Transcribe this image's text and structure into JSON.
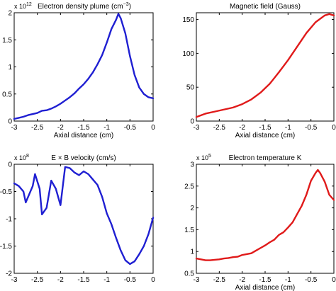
{
  "chart_data": [
    {
      "type": "line",
      "title": "Electron density plume (cm",
      "title_sup": "−3",
      "title_end": ")",
      "xlabel": "Axial distance (cm)",
      "ylabel": "",
      "xlim": [
        -3,
        0
      ],
      "ylim": [
        0,
        2
      ],
      "exponent_base": "x 10",
      "exponent": "12",
      "xticks": [
        "-3",
        "-2.5",
        "-2",
        "-1.5",
        "-1",
        "-0.5",
        "0"
      ],
      "yticks": [
        "0",
        "0.5",
        "1",
        "1.5",
        "2"
      ],
      "color": "#1f1fd2",
      "series": [
        {
          "x": [
            -3,
            -2.9,
            -2.8,
            -2.7,
            -2.6,
            -2.5,
            -2.4,
            -2.3,
            -2.2,
            -2.1,
            -2.0,
            -1.9,
            -1.8,
            -1.7,
            -1.6,
            -1.5,
            -1.4,
            -1.3,
            -1.2,
            -1.1,
            -1.0,
            -0.9,
            -0.8,
            -0.75,
            -0.7,
            -0.6,
            -0.5,
            -0.4,
            -0.3,
            -0.2,
            -0.1,
            0
          ],
          "y": [
            0.04,
            0.06,
            0.08,
            0.11,
            0.13,
            0.15,
            0.19,
            0.2,
            0.23,
            0.27,
            0.32,
            0.38,
            0.44,
            0.51,
            0.6,
            0.68,
            0.78,
            0.9,
            1.05,
            1.22,
            1.45,
            1.7,
            1.87,
            1.98,
            1.9,
            1.62,
            1.2,
            0.85,
            0.62,
            0.5,
            0.44,
            0.42
          ]
        }
      ]
    },
    {
      "type": "line",
      "title": "Magnetic field (Gauss)",
      "xlabel": "Axial distance (cm)",
      "ylabel": "",
      "xlim": [
        -3,
        0
      ],
      "ylim": [
        0,
        160
      ],
      "xticks": [
        "-3",
        "-2.5",
        "-2",
        "-1.5",
        "-1",
        "-0.5",
        "0"
      ],
      "yticks": [
        "0",
        "50",
        "100",
        "150"
      ],
      "color": "#e01a1a",
      "series": [
        {
          "x": [
            -3,
            -2.8,
            -2.6,
            -2.4,
            -2.2,
            -2.0,
            -1.8,
            -1.6,
            -1.4,
            -1.2,
            -1.0,
            -0.8,
            -0.6,
            -0.4,
            -0.2,
            -0.1,
            0
          ],
          "y": [
            6,
            11,
            14,
            17,
            20,
            25,
            32,
            42,
            55,
            72,
            90,
            110,
            130,
            146,
            156,
            158,
            156
          ]
        }
      ]
    },
    {
      "type": "line",
      "title": "E × B velocity (cm/s)",
      "xlabel": "",
      "ylabel": "",
      "xlim": [
        -3,
        0
      ],
      "ylim": [
        -2,
        0
      ],
      "exponent_base": "x 10",
      "exponent": "8",
      "xticks": [
        "-3",
        "-2.5",
        "-2",
        "-1.5",
        "-1",
        "-0.5",
        "0"
      ],
      "yticks": [
        "-2",
        "-1.5",
        "-1",
        "-0.5",
        "0"
      ],
      "color": "#1f1fd2",
      "series": [
        {
          "x": [
            -3,
            -2.9,
            -2.8,
            -2.75,
            -2.6,
            -2.55,
            -2.45,
            -2.4,
            -2.3,
            -2.2,
            -2.1,
            -2.0,
            -1.9,
            -1.8,
            -1.7,
            -1.6,
            -1.5,
            -1.4,
            -1.3,
            -1.2,
            -1.1,
            -1.0,
            -0.9,
            -0.8,
            -0.7,
            -0.6,
            -0.5,
            -0.4,
            -0.3,
            -0.2,
            -0.1,
            0
          ],
          "y": [
            -0.35,
            -0.4,
            -0.5,
            -0.7,
            -0.4,
            -0.18,
            -0.45,
            -0.92,
            -0.8,
            -0.3,
            -0.45,
            -0.75,
            -0.05,
            -0.07,
            -0.15,
            -0.2,
            -0.13,
            -0.18,
            -0.28,
            -0.38,
            -0.6,
            -0.9,
            -1.1,
            -1.35,
            -1.58,
            -1.76,
            -1.83,
            -1.78,
            -1.65,
            -1.5,
            -1.28,
            -0.98
          ]
        }
      ]
    },
    {
      "type": "line",
      "title": "Electron temperature K",
      "xlabel": "Axial distance (cm)",
      "ylabel": "",
      "xlim": [
        -3,
        0
      ],
      "ylim": [
        0.5,
        3
      ],
      "exponent_base": "x 10",
      "exponent": "5",
      "xticks": [
        "-3",
        "-2.5",
        "-2",
        "-1.5",
        "-1",
        "-0.5",
        "0"
      ],
      "yticks": [
        "0.5",
        "1",
        "1.5",
        "2",
        "2.5",
        "3"
      ],
      "color": "#e01a1a",
      "series": [
        {
          "x": [
            -3,
            -2.9,
            -2.8,
            -2.7,
            -2.6,
            -2.5,
            -2.4,
            -2.3,
            -2.2,
            -2.1,
            -2.0,
            -1.9,
            -1.8,
            -1.7,
            -1.6,
            -1.5,
            -1.4,
            -1.3,
            -1.2,
            -1.1,
            -1.0,
            -0.9,
            -0.8,
            -0.7,
            -0.6,
            -0.5,
            -0.4,
            -0.35,
            -0.3,
            -0.2,
            -0.1,
            0
          ],
          "y": [
            0.84,
            0.82,
            0.8,
            0.8,
            0.81,
            0.82,
            0.84,
            0.85,
            0.87,
            0.88,
            0.92,
            0.94,
            0.96,
            1.02,
            1.08,
            1.14,
            1.21,
            1.27,
            1.38,
            1.44,
            1.55,
            1.67,
            1.86,
            2.05,
            2.3,
            2.62,
            2.8,
            2.87,
            2.8,
            2.6,
            2.3,
            2.18
          ]
        }
      ]
    }
  ]
}
